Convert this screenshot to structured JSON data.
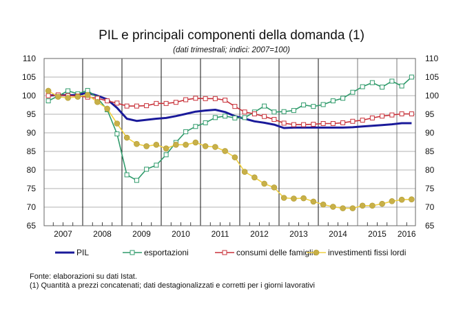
{
  "chart_data": {
    "type": "line",
    "title": "PIL e principali componenti della domanda (1)",
    "subtitle": "(dati trimestrali; indici: 2007=100)",
    "xlabel": "",
    "ylabel": "",
    "ylim": [
      65,
      110
    ],
    "yticks": [
      65,
      70,
      75,
      80,
      85,
      90,
      95,
      100,
      105,
      110
    ],
    "year_labels": [
      "2007",
      "2008",
      "2009",
      "2010",
      "2011",
      "2012",
      "2013",
      "2014",
      "2015",
      "2016"
    ],
    "x_range": [
      "2007 Q1",
      "2016 Q2"
    ],
    "grid": true,
    "legend_position": "bottom",
    "series": [
      {
        "name": "PIL",
        "color": "#1a1a9a",
        "marker": "none",
        "values": [
          100,
          100.2,
          100.1,
          100.2,
          100.8,
          100,
          99,
          96.7,
          93.8,
          93.2,
          93.5,
          93.8,
          94.0,
          94.5,
          95.1,
          95.7,
          96.0,
          96.2,
          95.6,
          94.5,
          93.8,
          93.1,
          92.7,
          92.2,
          91.3,
          91.4,
          91.4,
          91.4,
          91.4,
          91.4,
          91.4,
          91.5,
          91.7,
          91.9,
          92.1,
          92.3,
          92.6,
          92.6
        ]
      },
      {
        "name": "esportazioni",
        "color": "#2e9a6a",
        "marker": "square",
        "values": [
          98.6,
          99.9,
          101.3,
          100.5,
          101.4,
          99.4,
          96.2,
          89.7,
          78.7,
          77.2,
          80.2,
          81.3,
          84.1,
          87.4,
          90.3,
          91.7,
          92.7,
          94.1,
          94.5,
          94.0,
          94.1,
          95.6,
          97.2,
          95.6,
          95.7,
          96.0,
          97.5,
          97.1,
          97.6,
          98.6,
          99.3,
          100.9,
          102.4,
          103.5,
          102.3,
          103.9,
          102.6,
          105.0
        ]
      },
      {
        "name": "consumi delle famiglie",
        "color": "#c83038",
        "marker": "square",
        "values": [
          100,
          100.2,
          100,
          99.9,
          99.6,
          99.3,
          98.6,
          98,
          97.2,
          97.2,
          97.3,
          97.9,
          97.9,
          98.2,
          98.9,
          99.3,
          99.2,
          99.2,
          98.8,
          97.1,
          95.6,
          95.1,
          94.4,
          93.6,
          92.6,
          92.2,
          92.2,
          92.3,
          92.5,
          92.5,
          92.7,
          93.1,
          93.4,
          94.0,
          94.5,
          94.8,
          95.1,
          95.1
        ]
      },
      {
        "name": "investimenti fissi lordi",
        "color": "#f0d040",
        "marker_color": "#c8b048",
        "marker": "circle",
        "values": [
          101.3,
          99.7,
          99.4,
          99.7,
          100.2,
          98.3,
          96.5,
          92.5,
          88.7,
          87.0,
          86.4,
          86.8,
          85.8,
          86.8,
          86.8,
          87.4,
          86.4,
          86.2,
          85.1,
          83.4,
          79.5,
          78.0,
          76.3,
          75.3,
          72.5,
          72.3,
          72.4,
          71.5,
          70.7,
          70.1,
          69.7,
          69.7,
          70.4,
          70.4,
          70.9,
          71.6,
          72.0,
          72.1
        ]
      }
    ]
  },
  "notes": {
    "source": "Fonte: elaborazioni su dati Istat.",
    "footnote": "(1) Quantità a prezzi concatenati; dati destagionalizzati e corretti per i giorni lavorativi"
  }
}
